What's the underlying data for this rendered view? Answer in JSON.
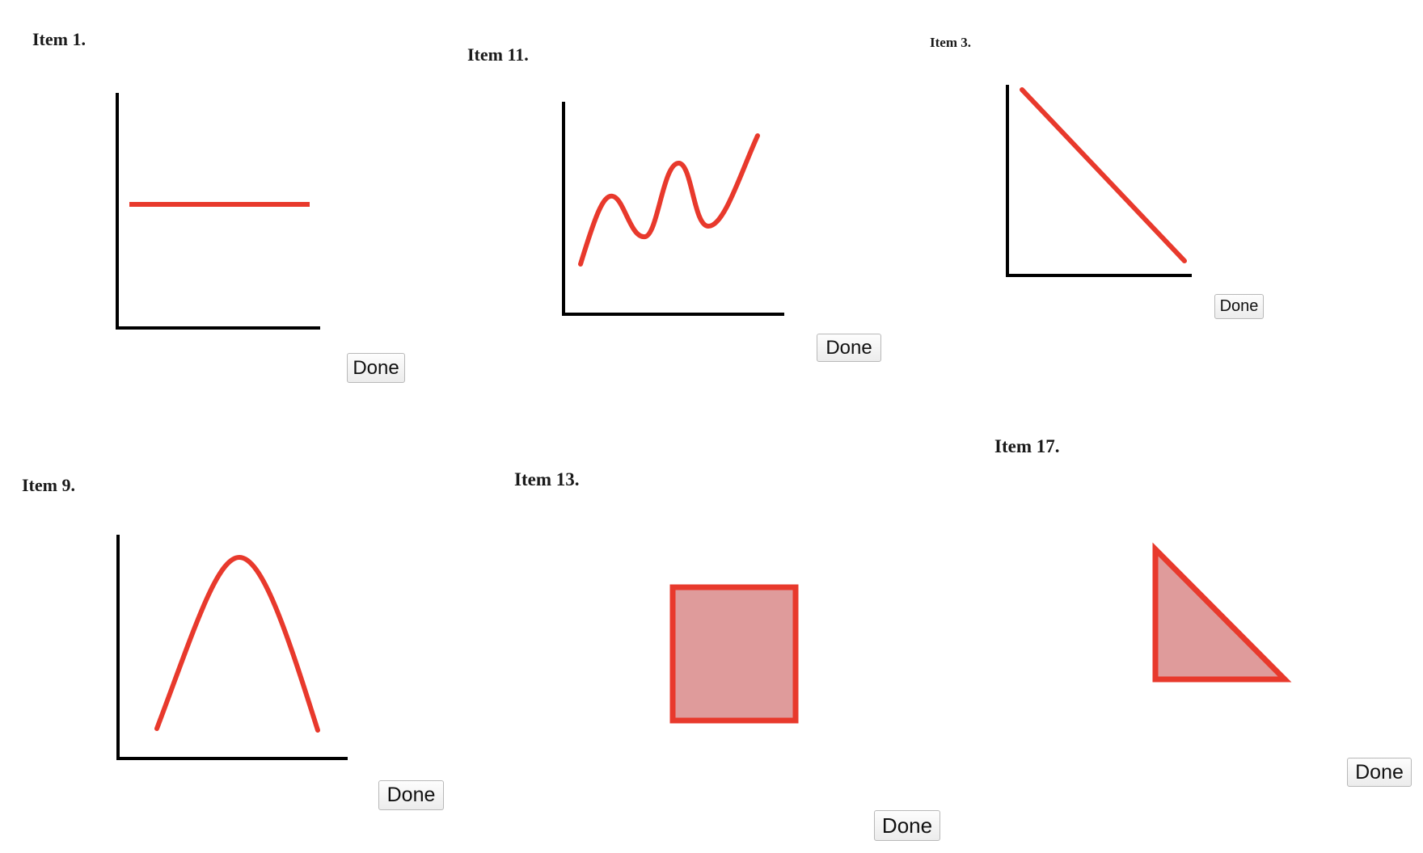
{
  "colors": {
    "curve": "#e8392c",
    "fill": "#df9b9b",
    "axis": "#000000"
  },
  "items": [
    {
      "id": "item-1",
      "title": "Item 1.",
      "shape": "horizontal-line",
      "done_label": "Done"
    },
    {
      "id": "item-11",
      "title": "Item 11.",
      "shape": "increasing-wave",
      "done_label": "Done"
    },
    {
      "id": "item-3",
      "title": "Item 3.",
      "shape": "decreasing-line",
      "done_label": "Done"
    },
    {
      "id": "item-9",
      "title": "Item 9.",
      "shape": "hump-curve",
      "done_label": "Done"
    },
    {
      "id": "item-13",
      "title": "Item 13.",
      "shape": "filled-square",
      "done_label": "Done"
    },
    {
      "id": "item-17",
      "title": "Item 17.",
      "shape": "filled-right-triangle",
      "done_label": "Done"
    }
  ]
}
